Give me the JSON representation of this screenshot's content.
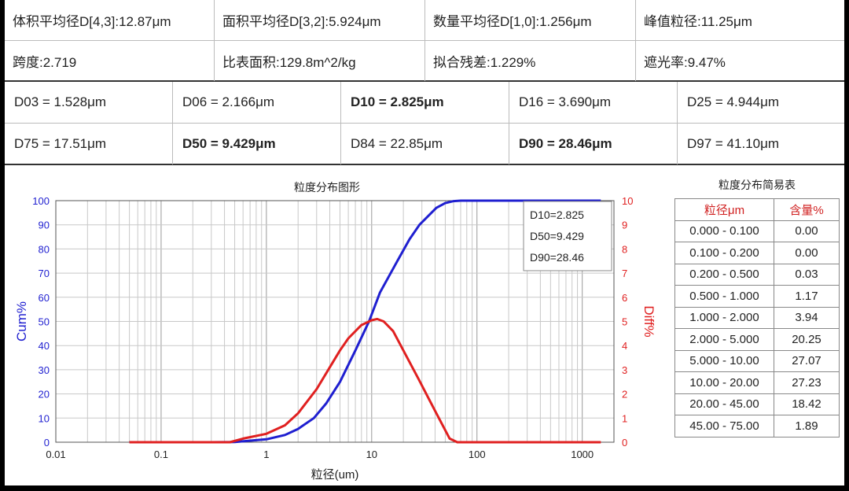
{
  "summary": {
    "rows": [
      [
        {
          "text": "体积平均径D[4,3]:12.87μm"
        },
        {
          "text": "面积平均径D[3,2]:5.924μm"
        },
        {
          "text": "数量平均径D[1,0]:1.256μm"
        },
        {
          "text": "峰值粒径:11.25μm"
        }
      ],
      [
        {
          "text": "跨度:2.719"
        },
        {
          "text": "比表面积:129.8m^2/kg"
        },
        {
          "text": "拟合残差:1.229%"
        },
        {
          "text": "遮光率:9.47%"
        }
      ]
    ]
  },
  "percentiles": {
    "rows": [
      [
        {
          "text": "D03 = 1.528μm",
          "bold": false
        },
        {
          "text": "D06 = 2.166μm",
          "bold": false
        },
        {
          "text": "D10 = 2.825μm",
          "bold": true
        },
        {
          "text": "D16 = 3.690μm",
          "bold": false
        },
        {
          "text": "D25 = 4.944μm",
          "bold": false
        }
      ],
      [
        {
          "text": "D75 = 17.51μm",
          "bold": false
        },
        {
          "text": "D50 = 9.429μm",
          "bold": true
        },
        {
          "text": "D84 = 22.85μm",
          "bold": false
        },
        {
          "text": "D90 = 28.46μm",
          "bold": true
        },
        {
          "text": "D97 = 41.10μm",
          "bold": false
        }
      ]
    ]
  },
  "chart_data": {
    "type": "line",
    "title": "粒度分布图形",
    "xlabel": "粒径(um)",
    "ylabel_left": "Cum%",
    "ylabel_right": "Diff%",
    "xscale": "log",
    "xlim": [
      0.01,
      2000
    ],
    "x_ticks": [
      0.01,
      0.1,
      1,
      10,
      100,
      1000
    ],
    "x_tick_labels": [
      "0.01",
      "0.1",
      "1",
      "10",
      "100",
      "1000"
    ],
    "ylim_left": [
      0,
      100
    ],
    "ylim_right": [
      0,
      10
    ],
    "y_ticks_left": [
      0,
      10,
      20,
      30,
      40,
      50,
      60,
      70,
      80,
      90,
      100
    ],
    "y_ticks_right": [
      0,
      1,
      2,
      3,
      4,
      5,
      6,
      7,
      8,
      9,
      10
    ],
    "grid": true,
    "annotations": [
      "D10=2.825",
      "D50=9.429",
      "D90=28.46"
    ],
    "colors": {
      "cum": "#1f1fd0",
      "diff": "#e02020"
    },
    "series": [
      {
        "axis": "left",
        "color": "#1f1fd0",
        "x": [
          0.05,
          0.3,
          0.5,
          1.0,
          1.5,
          2.0,
          2.825,
          3.69,
          5.0,
          7.0,
          9.429,
          12.0,
          17.5,
          22.85,
          28.46,
          41.1,
          50.0,
          60.0,
          70.0,
          100.0,
          1500.0
        ],
        "y": [
          0,
          0,
          0.1,
          1.2,
          3.0,
          5.5,
          10,
          16,
          25,
          38,
          50,
          62,
          75,
          84,
          90,
          97,
          99,
          99.8,
          100,
          100,
          100
        ]
      },
      {
        "axis": "right",
        "color": "#e02020",
        "x": [
          0.05,
          0.3,
          0.45,
          0.6,
          1.0,
          1.5,
          2.0,
          3.0,
          4.0,
          5.0,
          6.0,
          8.0,
          10.0,
          11.25,
          13.0,
          16.0,
          20.0,
          28.0,
          40.0,
          55.0,
          65.0,
          80.0,
          1500.0
        ],
        "y": [
          0,
          0,
          0.0,
          0.15,
          0.35,
          0.7,
          1.2,
          2.2,
          3.1,
          3.8,
          4.3,
          4.85,
          5.05,
          5.1,
          5.0,
          4.6,
          3.8,
          2.6,
          1.3,
          0.15,
          0.0,
          0.0,
          0.0
        ]
      }
    ]
  },
  "dist_table": {
    "title": "粒度分布简易表",
    "headers": [
      "粒径μm",
      "含量%"
    ],
    "rows": [
      [
        "0.000 - 0.100",
        "0.00"
      ],
      [
        "0.100 - 0.200",
        "0.00"
      ],
      [
        "0.200 - 0.500",
        "0.03"
      ],
      [
        "0.500 - 1.000",
        "1.17"
      ],
      [
        "1.000 - 2.000",
        "3.94"
      ],
      [
        "2.000 - 5.000",
        "20.25"
      ],
      [
        "5.000 - 10.00",
        "27.07"
      ],
      [
        "10.00 - 20.00",
        "27.23"
      ],
      [
        "20.00 - 45.00",
        "18.42"
      ],
      [
        "45.00 - 75.00",
        "1.89"
      ]
    ]
  }
}
